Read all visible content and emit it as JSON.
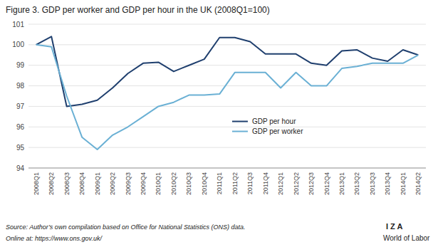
{
  "chart_data": {
    "type": "line",
    "title": "Figure 3. GDP per worker and GDP per hour in the UK (2008Q1=100)",
    "categories": [
      "2008Q1",
      "2008Q2",
      "2008Q3",
      "2008Q4",
      "2009Q1",
      "2009Q2",
      "2009Q3",
      "2009Q4",
      "2010Q1",
      "2010Q2",
      "2010Q3",
      "2010Q4",
      "2011Q1",
      "2011Q2",
      "2011Q3",
      "2011Q4",
      "2012Q1",
      "2012Q2",
      "2012Q3",
      "2012Q4",
      "2013Q1",
      "2013Q2",
      "2013Q3",
      "2013Q4",
      "2014Q1",
      "2014Q2"
    ],
    "series": [
      {
        "name": "GDP per hour",
        "color": "#1f3f6e",
        "values": [
          100.0,
          100.4,
          97.0,
          97.1,
          97.3,
          97.9,
          98.6,
          99.1,
          99.15,
          98.7,
          99.0,
          99.3,
          100.35,
          100.35,
          100.15,
          99.55,
          99.55,
          99.55,
          99.1,
          99.0,
          99.7,
          99.75,
          99.35,
          99.2,
          99.75,
          99.5
        ]
      },
      {
        "name": "GDP per worker",
        "color": "#6ab0d4",
        "values": [
          100.0,
          99.9,
          97.5,
          95.5,
          94.9,
          95.6,
          96.0,
          96.5,
          97.0,
          97.2,
          97.55,
          97.55,
          97.6,
          98.65,
          98.65,
          98.65,
          97.9,
          98.65,
          98.0,
          98.0,
          98.85,
          98.95,
          99.1,
          99.1,
          99.1,
          99.5
        ]
      }
    ],
    "ylim": [
      94,
      101
    ],
    "yticks": [
      94,
      95,
      96,
      97,
      98,
      99,
      100,
      101
    ],
    "grid": true,
    "legend": "lower center",
    "annotations": [
      "Source: Author’s own compilation based on Office for National Statistics (ONS) data.",
      "Online at: https://www.ons.gov.uk/",
      "I Z A",
      "World of Labor"
    ]
  }
}
